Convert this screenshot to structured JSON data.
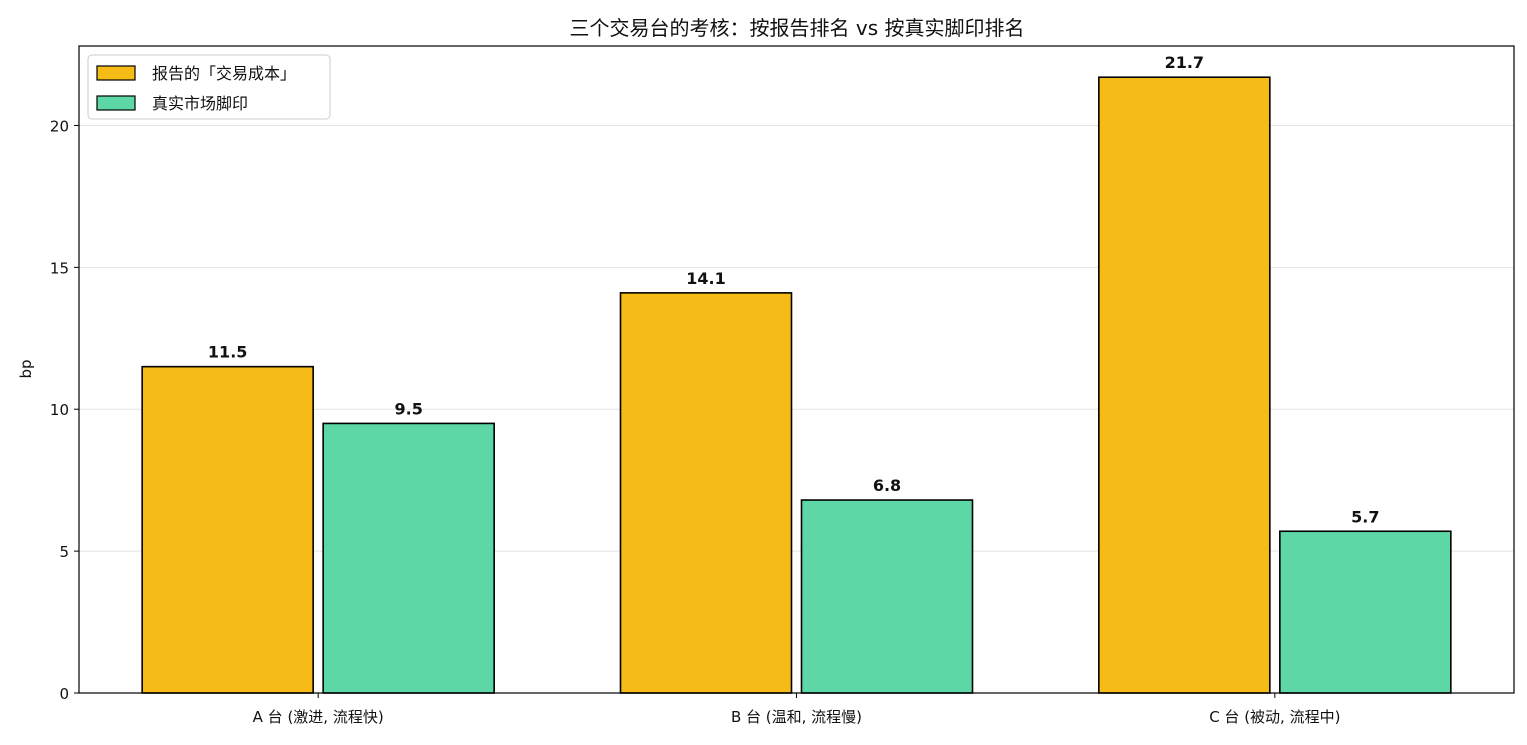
{
  "chart_data": {
    "type": "bar",
    "title": "三个交易台的考核：按报告排名 vs 按真实脚印排名",
    "xlabel": "",
    "ylabel": "bp",
    "categories": [
      "A 台 (激进, 流程快)",
      "B 台 (温和, 流程慢)",
      "C 台 (被动, 流程中)"
    ],
    "series": [
      {
        "name": "报告的「交易成本」",
        "values": [
          11.5,
          14.1,
          21.7
        ],
        "color": "#F5BC18"
      },
      {
        "name": "真实市场脚印",
        "values": [
          9.5,
          6.8,
          5.7
        ],
        "color": "#5CD7A5"
      }
    ],
    "data_labels": [
      [
        "11.5",
        "14.1",
        "21.7"
      ],
      [
        "9.5",
        "6.8",
        "5.7"
      ]
    ],
    "yticks": [
      0,
      5,
      10,
      15,
      20
    ],
    "ylim": [
      0,
      22.8
    ],
    "grid": "y",
    "legend_position": "top-left"
  }
}
